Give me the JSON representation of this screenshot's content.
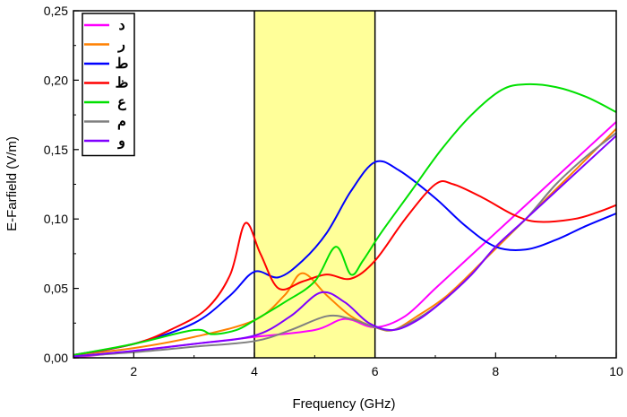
{
  "chart_data": {
    "type": "line",
    "xlabel": "Frequency (GHz)",
    "ylabel": "E-Farfield (V/m)",
    "xlim": [
      1,
      10
    ],
    "ylim": [
      0,
      0.25
    ],
    "xticks": [
      "2",
      "4",
      "6",
      "8",
      "10"
    ],
    "xtick_values": [
      2,
      4,
      6,
      8,
      10
    ],
    "yticks": [
      "0,00",
      "0,05",
      "0,10",
      "0,15",
      "0,20",
      "0,25"
    ],
    "ytick_values": [
      0,
      0.05,
      0.1,
      0.15,
      0.2,
      0.25
    ],
    "grid": false,
    "legend_position": "top-left",
    "highlight_band": {
      "x": [
        4,
        6
      ],
      "color": "#ffff99"
    },
    "band_lines_color": "#000000",
    "series": [
      {
        "name": "د",
        "color": "#ff00ff",
        "x": [
          1,
          2,
          3,
          4,
          5,
          5.5,
          6,
          6.5,
          7,
          7.5,
          8,
          8.5,
          9,
          9.5,
          10
        ],
        "y": [
          0,
          0.005,
          0.01,
          0.015,
          0.02,
          0.028,
          0.022,
          0.03,
          0.05,
          0.07,
          0.09,
          0.11,
          0.13,
          0.15,
          0.17
        ]
      },
      {
        "name": "ر",
        "color": "#ff8000",
        "x": [
          1,
          2,
          3,
          4,
          4.5,
          4.8,
          5.2,
          5.6,
          6,
          6.3,
          6.7,
          7.2,
          7.8,
          8.5,
          9.2,
          10
        ],
        "y": [
          0.002,
          0.007,
          0.015,
          0.027,
          0.045,
          0.061,
          0.045,
          0.03,
          0.022,
          0.02,
          0.03,
          0.045,
          0.07,
          0.1,
          0.13,
          0.165
        ]
      },
      {
        "name": "ط",
        "color": "#0000ff",
        "x": [
          1,
          2,
          3,
          3.6,
          4,
          4.4,
          4.8,
          5.2,
          5.6,
          6,
          6.4,
          7,
          7.5,
          8,
          8.5,
          9,
          9.5,
          10
        ],
        "y": [
          0.002,
          0.01,
          0.025,
          0.045,
          0.062,
          0.058,
          0.07,
          0.09,
          0.12,
          0.141,
          0.135,
          0.115,
          0.095,
          0.08,
          0.078,
          0.085,
          0.095,
          0.104
        ]
      },
      {
        "name": "ظ",
        "color": "#ff0000",
        "x": [
          1,
          2,
          2.6,
          3.2,
          3.6,
          3.85,
          4.1,
          4.4,
          4.8,
          5.2,
          5.6,
          6,
          6.5,
          7,
          7.3,
          7.8,
          8.3,
          8.7,
          9.3,
          9.7,
          10
        ],
        "y": [
          0.002,
          0.01,
          0.02,
          0.035,
          0.06,
          0.097,
          0.075,
          0.05,
          0.055,
          0.06,
          0.057,
          0.07,
          0.1,
          0.125,
          0.125,
          0.115,
          0.103,
          0.098,
          0.1,
          0.105,
          0.11
        ]
      },
      {
        "name": "ع",
        "color": "#00e000",
        "x": [
          1,
          2,
          3,
          3.3,
          3.7,
          4,
          4.5,
          5,
          5.35,
          5.6,
          5.8,
          6.1,
          6.6,
          7.1,
          7.6,
          8.1,
          8.5,
          9,
          9.5,
          10
        ],
        "y": [
          0.002,
          0.01,
          0.02,
          0.017,
          0.02,
          0.027,
          0.04,
          0.055,
          0.08,
          0.06,
          0.07,
          0.09,
          0.12,
          0.15,
          0.175,
          0.193,
          0.197,
          0.195,
          0.188,
          0.177
        ]
      },
      {
        "name": "م",
        "color": "#808080",
        "x": [
          1,
          2,
          3,
          4,
          4.6,
          5.2,
          5.6,
          6,
          6.3,
          6.7,
          7.1,
          7.6,
          8,
          8.5,
          9,
          9.5,
          10
        ],
        "y": [
          0.001,
          0.004,
          0.008,
          0.012,
          0.02,
          0.03,
          0.028,
          0.022,
          0.02,
          0.028,
          0.04,
          0.06,
          0.08,
          0.1,
          0.125,
          0.145,
          0.162
        ]
      },
      {
        "name": "و",
        "color": "#8000ff",
        "x": [
          1,
          2,
          3,
          4,
          4.6,
          5.1,
          5.5,
          5.9,
          6.3,
          6.7,
          7.1,
          7.6,
          8,
          8.5,
          9,
          9.5,
          10
        ],
        "y": [
          0.001,
          0.005,
          0.01,
          0.016,
          0.03,
          0.047,
          0.04,
          0.025,
          0.02,
          0.027,
          0.04,
          0.06,
          0.08,
          0.1,
          0.12,
          0.14,
          0.16
        ]
      }
    ]
  }
}
